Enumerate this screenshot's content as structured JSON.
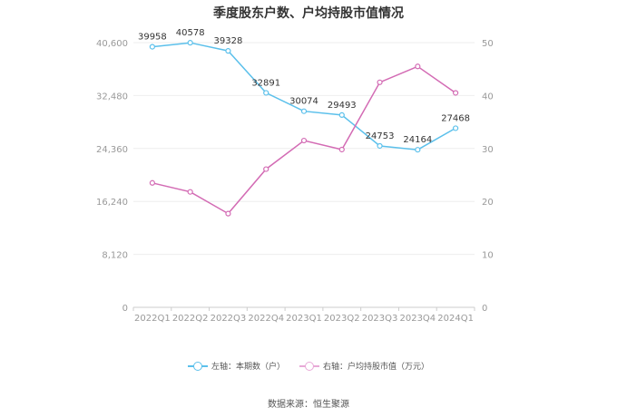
{
  "chart_data": {
    "type": "line",
    "title": "季度股东户数、户均持股市值情况",
    "categories": [
      "2022Q1",
      "2022Q2",
      "2022Q3",
      "2022Q4",
      "2023Q1",
      "2023Q2",
      "2023Q3",
      "2023Q4",
      "2024Q1"
    ],
    "left_axis": {
      "ylim": [
        0,
        40600
      ],
      "ticks": [
        "0",
        "8,120",
        "16,240",
        "24,360",
        "32,480",
        "40,600"
      ]
    },
    "right_axis": {
      "ylim": [
        0,
        50
      ],
      "ticks": [
        "0",
        "10",
        "20",
        "30",
        "40",
        "50"
      ]
    },
    "series": [
      {
        "name": "左轴：本期数（户）",
        "axis": "left",
        "color": "#5bc0eb",
        "values": [
          39958,
          40578,
          39328,
          32891,
          30074,
          29493,
          24753,
          24164,
          27468
        ],
        "labels": [
          "39958",
          "40578",
          "39328",
          "32891",
          "30074",
          "29493",
          "24753",
          "24164",
          "27468"
        ]
      },
      {
        "name": "右轴：户均持股市值（万元）",
        "axis": "right",
        "color": "#d36bb4",
        "values": [
          23.5,
          21.8,
          17.7,
          26.1,
          31.5,
          29.8,
          42.5,
          45.5,
          40.5
        ]
      }
    ],
    "grid": true,
    "legend_position": "bottom"
  },
  "footer": {
    "source": "数据来源：恒生聚源"
  }
}
